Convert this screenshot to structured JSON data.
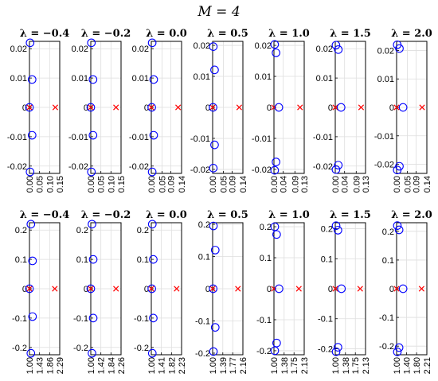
{
  "figure": {
    "title": "M = 4"
  },
  "style": {
    "circle_color": "#0000ff",
    "cross_color": "#ff0000",
    "grid_color": "#dedede",
    "axes_color": "#000000"
  },
  "chart_data": [
    {
      "row": 1,
      "type": "scatter",
      "title": "λ = −0.4",
      "xlim": [
        0,
        0.15
      ],
      "ylim": [
        -0.0225,
        0.0225
      ],
      "xticks": [
        "0.00",
        "0.05",
        "0.10",
        "0.15"
      ],
      "yticks": [
        "-0.02",
        "-0.01",
        "0",
        "0.01",
        "0.02"
      ],
      "circles": [
        {
          "x": 0.003,
          "y": 0.022
        },
        {
          "x": 0.013,
          "y": 0.0095
        },
        {
          "x": 0.0,
          "y": 0.0
        },
        {
          "x": 0.013,
          "y": -0.0095
        },
        {
          "x": 0.003,
          "y": -0.022
        }
      ],
      "crosses": [
        {
          "x": 0.0,
          "y": 0.0
        },
        {
          "x": 0.128,
          "y": 0.0
        }
      ]
    },
    {
      "row": 1,
      "type": "scatter",
      "title": "λ = −0.2",
      "xlim": [
        0,
        0.15
      ],
      "ylim": [
        -0.0225,
        0.0225
      ],
      "xticks": [
        "0.00",
        "0.05",
        "0.10",
        "0.15"
      ],
      "yticks": [
        "-0.02",
        "-0.01",
        "0",
        "0.01",
        "0.02"
      ],
      "circles": [
        {
          "x": 0.003,
          "y": 0.022
        },
        {
          "x": 0.011,
          "y": 0.0095
        },
        {
          "x": 0.0,
          "y": 0.0
        },
        {
          "x": 0.011,
          "y": -0.0095
        },
        {
          "x": 0.003,
          "y": -0.022
        }
      ],
      "crosses": [
        {
          "x": 0.0,
          "y": 0.0
        },
        {
          "x": 0.125,
          "y": 0.0
        }
      ]
    },
    {
      "row": 1,
      "type": "scatter",
      "title": "λ = 0.0",
      "xlim": [
        0,
        0.14
      ],
      "ylim": [
        -0.0225,
        0.0225
      ],
      "xticks": [
        "0.00",
        "0.05",
        "0.09",
        "0.14"
      ],
      "yticks": [
        "-0.02",
        "-0.01",
        "0",
        "0.01",
        "0.02"
      ],
      "circles": [
        {
          "x": 0.004,
          "y": 0.022
        },
        {
          "x": 0.011,
          "y": 0.0095
        },
        {
          "x": 0.002,
          "y": 0.0
        },
        {
          "x": 0.011,
          "y": -0.0095
        },
        {
          "x": 0.004,
          "y": -0.022
        }
      ],
      "crosses": [
        {
          "x": 0.0,
          "y": 0.0
        },
        {
          "x": 0.124,
          "y": 0.0
        }
      ]
    },
    {
      "row": 1,
      "type": "scatter",
      "title": "λ = 0.5",
      "xlim": [
        0,
        0.14
      ],
      "ylim": [
        -0.0213,
        0.0213
      ],
      "xticks": [
        "0.00",
        "0.05",
        "0.09",
        "0.14"
      ],
      "yticks": [
        "-0.02",
        "-0.01",
        "0",
        "0.01",
        "0.02"
      ],
      "circles": [
        {
          "x": 0.003,
          "y": 0.0196
        },
        {
          "x": 0.009,
          "y": 0.0121
        },
        {
          "x": 0.002,
          "y": 0.0
        },
        {
          "x": 0.009,
          "y": -0.0121
        },
        {
          "x": 0.003,
          "y": -0.0196
        }
      ],
      "crosses": [
        {
          "x": 0.0,
          "y": 0.0
        },
        {
          "x": 0.123,
          "y": 0.0
        }
      ]
    },
    {
      "row": 1,
      "type": "scatter",
      "title": "λ = 1.0",
      "xlim": [
        0,
        0.13
      ],
      "ylim": [
        -0.0213,
        0.0213
      ],
      "xticks": [
        "0.00",
        "0.04",
        "0.09",
        "0.13"
      ],
      "yticks": [
        "-0.02",
        "-0.01",
        "0",
        "0.01",
        "0.02"
      ],
      "circles": [
        {
          "x": 0.003,
          "y": 0.0203
        },
        {
          "x": 0.009,
          "y": 0.0176
        },
        {
          "x": 0.021,
          "y": 0.0
        },
        {
          "x": 0.009,
          "y": -0.0176
        },
        {
          "x": 0.003,
          "y": -0.0203
        }
      ],
      "crosses": [
        {
          "x": 0.0,
          "y": 0.0
        },
        {
          "x": 0.112,
          "y": 0.0
        }
      ]
    },
    {
      "row": 1,
      "type": "scatter",
      "title": "λ = 1.5",
      "xlim": [
        0,
        0.13
      ],
      "ylim": [
        -0.0225,
        0.0225
      ],
      "xticks": [
        "0.00",
        "0.04",
        "0.09",
        "0.13"
      ],
      "yticks": [
        "-0.02",
        "-0.01",
        "0",
        "0.01",
        "0.02"
      ],
      "circles": [
        {
          "x": 0.003,
          "y": 0.0212
        },
        {
          "x": 0.013,
          "y": 0.0197
        },
        {
          "x": 0.025,
          "y": 0.0
        },
        {
          "x": 0.013,
          "y": -0.0197
        },
        {
          "x": 0.003,
          "y": -0.0212
        }
      ],
      "crosses": [
        {
          "x": 0.0,
          "y": 0.0
        },
        {
          "x": 0.111,
          "y": 0.0
        }
      ]
    },
    {
      "row": 1,
      "type": "scatter",
      "title": "λ = 2.0",
      "xlim": [
        0,
        0.14
      ],
      "ylim": [
        -0.0232,
        0.0232
      ],
      "xticks": [
        "0.00",
        "0.05",
        "0.09",
        "0.14"
      ],
      "yticks": [
        "-0.02",
        "-0.01",
        "0",
        "0.01",
        "0.02"
      ],
      "circles": [
        {
          "x": 0.003,
          "y": 0.022
        },
        {
          "x": 0.013,
          "y": 0.0207
        },
        {
          "x": 0.03,
          "y": 0.0
        },
        {
          "x": 0.013,
          "y": -0.0207
        },
        {
          "x": 0.003,
          "y": -0.022
        }
      ],
      "crosses": [
        {
          "x": 0.0,
          "y": 0.0
        },
        {
          "x": 0.118,
          "y": 0.0
        }
      ]
    },
    {
      "row": 2,
      "type": "scatter",
      "title": "λ = −0.4",
      "xlim": [
        1.0,
        2.29
      ],
      "ylim": [
        -0.225,
        0.225
      ],
      "xticks": [
        "1.00",
        "1.43",
        "1.86",
        "2.29"
      ],
      "yticks": [
        "-0.2",
        "-0.1",
        "0",
        "0.1",
        "0.2"
      ],
      "circles": [
        {
          "x": 1.06,
          "y": 0.22
        },
        {
          "x": 1.13,
          "y": 0.095
        },
        {
          "x": 1.0,
          "y": 0.0
        },
        {
          "x": 1.13,
          "y": -0.095
        },
        {
          "x": 1.06,
          "y": -0.22
        }
      ],
      "crosses": [
        {
          "x": 1.0,
          "y": 0.0
        },
        {
          "x": 2.08,
          "y": 0.0
        }
      ]
    },
    {
      "row": 2,
      "type": "scatter",
      "title": "λ = −0.2",
      "xlim": [
        1.0,
        2.26
      ],
      "ylim": [
        -0.225,
        0.225
      ],
      "xticks": [
        "1.00",
        "1.42",
        "1.84",
        "2.26"
      ],
      "yticks": [
        "-0.2",
        "-0.1",
        "0",
        "0.1",
        "0.2"
      ],
      "circles": [
        {
          "x": 1.05,
          "y": 0.22
        },
        {
          "x": 1.1,
          "y": 0.1
        },
        {
          "x": 1.0,
          "y": 0.0
        },
        {
          "x": 1.1,
          "y": -0.1
        },
        {
          "x": 1.05,
          "y": -0.22
        }
      ],
      "crosses": [
        {
          "x": 1.0,
          "y": 0.0
        },
        {
          "x": 2.05,
          "y": 0.0
        }
      ]
    },
    {
      "row": 2,
      "type": "scatter",
      "title": "λ = 0.0",
      "xlim": [
        1.0,
        2.23
      ],
      "ylim": [
        -0.225,
        0.225
      ],
      "xticks": [
        "1.00",
        "1.41",
        "1.82",
        "2.23"
      ],
      "yticks": [
        "-0.2",
        "-0.1",
        "0",
        "0.1",
        "0.2"
      ],
      "circles": [
        {
          "x": 1.04,
          "y": 0.22
        },
        {
          "x": 1.08,
          "y": 0.1
        },
        {
          "x": 1.02,
          "y": 0.0
        },
        {
          "x": 1.08,
          "y": -0.1
        },
        {
          "x": 1.04,
          "y": -0.22
        }
      ],
      "crosses": [
        {
          "x": 1.0,
          "y": 0.0
        },
        {
          "x": 2.03,
          "y": 0.0
        }
      ]
    },
    {
      "row": 2,
      "type": "scatter",
      "title": "λ = 0.5",
      "xlim": [
        1.0,
        2.16
      ],
      "ylim": [
        -0.205,
        0.205
      ],
      "xticks": [
        "1.00",
        "1.39",
        "1.77",
        "2.16"
      ],
      "yticks": [
        "-0.2",
        "-0.1",
        "0",
        "0.1",
        "0.2"
      ],
      "circles": [
        {
          "x": 1.03,
          "y": 0.195
        },
        {
          "x": 1.1,
          "y": 0.12
        },
        {
          "x": 1.02,
          "y": 0.0
        },
        {
          "x": 1.1,
          "y": -0.12
        },
        {
          "x": 1.03,
          "y": -0.195
        }
      ],
      "crosses": [
        {
          "x": 1.0,
          "y": 0.0
        },
        {
          "x": 1.97,
          "y": 0.0
        }
      ]
    },
    {
      "row": 2,
      "type": "scatter",
      "title": "λ = 1.0",
      "xlim": [
        1.0,
        2.13
      ],
      "ylim": [
        -0.213,
        0.213
      ],
      "xticks": [
        "1.00",
        "1.38",
        "1.75",
        "2.13"
      ],
      "yticks": [
        "-0.2",
        "-0.1",
        "0",
        "0.1",
        "0.2"
      ],
      "circles": [
        {
          "x": 1.03,
          "y": 0.2
        },
        {
          "x": 1.1,
          "y": 0.175
        },
        {
          "x": 1.19,
          "y": 0.0
        },
        {
          "x": 1.1,
          "y": -0.175
        },
        {
          "x": 1.03,
          "y": -0.2
        }
      ],
      "crosses": [
        {
          "x": 1.0,
          "y": 0.0
        },
        {
          "x": 1.93,
          "y": 0.0
        }
      ]
    },
    {
      "row": 2,
      "type": "scatter",
      "title": "λ = 1.5",
      "xlim": [
        1.0,
        2.13
      ],
      "ylim": [
        -0.22,
        0.22
      ],
      "xticks": [
        "1.00",
        "1.38",
        "1.75",
        "2.13"
      ],
      "yticks": [
        "-0.2",
        "-0.1",
        "0",
        "0.1",
        "0.2"
      ],
      "circles": [
        {
          "x": 1.03,
          "y": 0.21
        },
        {
          "x": 1.1,
          "y": 0.195
        },
        {
          "x": 1.23,
          "y": 0.0
        },
        {
          "x": 1.1,
          "y": -0.195
        },
        {
          "x": 1.03,
          "y": -0.21
        }
      ],
      "crosses": [
        {
          "x": 1.0,
          "y": 0.0
        },
        {
          "x": 1.93,
          "y": 0.0
        }
      ]
    },
    {
      "row": 2,
      "type": "scatter",
      "title": "λ = 2.0",
      "xlim": [
        1.0,
        2.21
      ],
      "ylim": [
        -0.23,
        0.23
      ],
      "xticks": [
        "1.00",
        "1.40",
        "1.80",
        "2.21"
      ],
      "yticks": [
        "-0.2",
        "-0.1",
        "0",
        "0.1",
        "0.2"
      ],
      "circles": [
        {
          "x": 1.03,
          "y": 0.22
        },
        {
          "x": 1.1,
          "y": 0.205
        },
        {
          "x": 1.26,
          "y": 0.0
        },
        {
          "x": 1.1,
          "y": -0.205
        },
        {
          "x": 1.03,
          "y": -0.22
        }
      ],
      "crosses": [
        {
          "x": 1.0,
          "y": 0.0
        },
        {
          "x": 2.0,
          "y": 0.0
        }
      ]
    }
  ]
}
